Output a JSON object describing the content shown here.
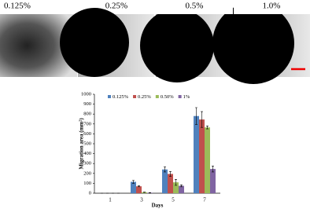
{
  "panels": {
    "labels": [
      "0.125%",
      "0.25%",
      "0.5%",
      "1.0%"
    ]
  },
  "chart_data": {
    "type": "bar",
    "y_label": "Migration area (mm²)",
    "x_label": "Days",
    "categories": [
      "1",
      "3",
      "5",
      "7"
    ],
    "series": [
      {
        "name": "0.125%",
        "color": "#4f81bd",
        "values": [
          0,
          115,
          240,
          780
        ],
        "errors": [
          0,
          15,
          25,
          85
        ]
      },
      {
        "name": "0.25%",
        "color": "#c0504d",
        "values": [
          0,
          70,
          195,
          745
        ],
        "errors": [
          0,
          5,
          25,
          80
        ]
      },
      {
        "name": "0.50%",
        "color": "#9bbb59",
        "values": [
          0,
          10,
          110,
          665
        ],
        "errors": [
          0,
          2,
          30,
          15
        ]
      },
      {
        "name": "1%",
        "color": "#8064a2",
        "values": [
          0,
          5,
          75,
          245
        ],
        "errors": [
          0,
          2,
          10,
          30
        ]
      }
    ],
    "ylim": [
      0,
      1000
    ],
    "yticks": [
      0,
      100,
      200,
      300,
      400,
      500,
      600,
      700,
      800,
      900,
      1000
    ],
    "legend": "top"
  }
}
